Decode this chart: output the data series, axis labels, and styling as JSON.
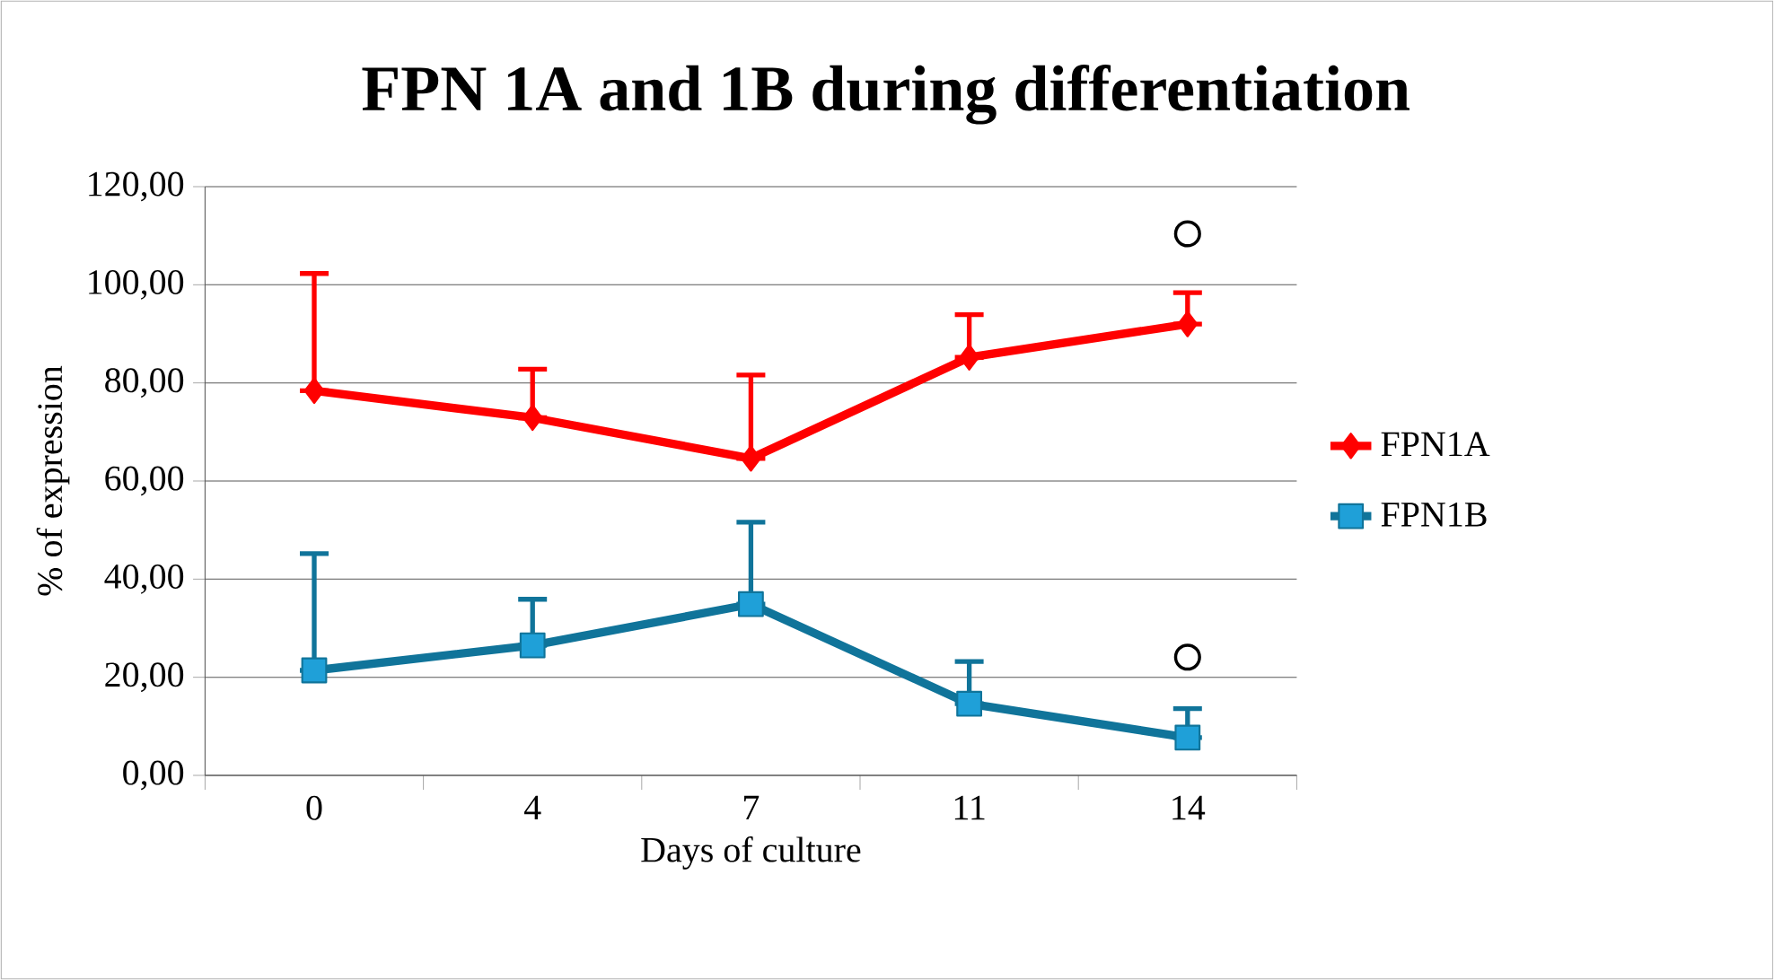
{
  "chart_data": {
    "type": "line",
    "title": "FPN 1A and 1B during differentiation",
    "xlabel": "Days of culture",
    "ylabel": "% of expression",
    "categories": [
      "0",
      "4",
      "7",
      "11",
      "14"
    ],
    "series": [
      {
        "name": "FPN1A",
        "color": "#ff0000",
        "marker": "diamond",
        "values": [
          78.4,
          72.9,
          64.6,
          85.2,
          92.0
        ],
        "errors": [
          [
            78.4,
            102.3
          ],
          [
            72.9,
            82.8
          ],
          [
            64.6,
            81.6
          ],
          [
            85.2,
            93.9
          ],
          [
            92.0,
            98.4
          ]
        ]
      },
      {
        "name": "FPN1B",
        "color": "#10749a",
        "marker": "square",
        "values": [
          21.4,
          26.5,
          34.9,
          14.6,
          7.7
        ],
        "errors": [
          [
            21.4,
            45.2
          ],
          [
            26.5,
            35.9
          ],
          [
            34.9,
            51.6
          ],
          [
            14.6,
            23.2
          ],
          [
            7.7,
            13.6
          ]
        ]
      },
      {
        "type": "scatter",
        "color": "#000000",
        "marker": "circle",
        "x": [
          "14",
          "14"
        ],
        "values": [
          110.4,
          24.1
        ]
      }
    ],
    "ylim": [
      0,
      120
    ],
    "yticks": [
      {
        "value": 0,
        "label": "0,00"
      },
      {
        "value": 20,
        "label": "20,00"
      },
      {
        "value": 40,
        "label": "40,00"
      },
      {
        "value": 60,
        "label": "60,00"
      },
      {
        "value": 80,
        "label": "80,00"
      },
      {
        "value": 100,
        "label": "100,00"
      },
      {
        "value": 120,
        "label": "120,00"
      }
    ],
    "grid": "y",
    "legend": "right"
  }
}
